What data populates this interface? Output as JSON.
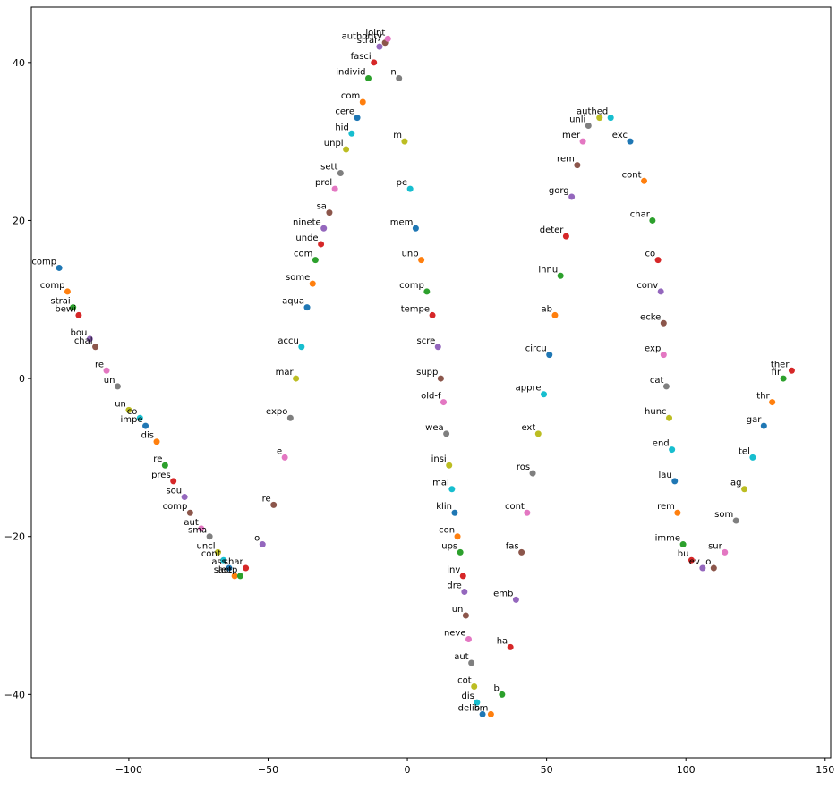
{
  "chart_data": {
    "type": "scatter",
    "title": "",
    "xlabel": "",
    "ylabel": "",
    "xlim": [
      -135,
      152
    ],
    "ylim": [
      -48,
      47
    ],
    "x_ticks": [
      -100,
      -50,
      0,
      50,
      100,
      150
    ],
    "y_ticks": [
      -40,
      -20,
      0,
      20,
      40
    ],
    "x_tick_labels": [
      "−100",
      "−50",
      "0",
      "50",
      "100",
      "150"
    ],
    "y_tick_labels": [
      "−40",
      "−20",
      "0",
      "20",
      "40"
    ],
    "grid": false,
    "legend": "none",
    "palette": [
      "#1f77b4",
      "#ff7f0e",
      "#2ca02c",
      "#d62728",
      "#9467bd",
      "#8c564b",
      "#e377c2",
      "#7f7f7f",
      "#bcbd22",
      "#17becf"
    ],
    "points": [
      {
        "x": -125,
        "y": 14,
        "label": "comp"
      },
      {
        "x": -122,
        "y": 11,
        "label": "comp"
      },
      {
        "x": -120,
        "y": 9,
        "label": "strai"
      },
      {
        "x": -118,
        "y": 8,
        "label": "bewi"
      },
      {
        "x": -114,
        "y": 5,
        "label": "bou"
      },
      {
        "x": -112,
        "y": 4,
        "label": "chal"
      },
      {
        "x": -108,
        "y": 1,
        "label": "re"
      },
      {
        "x": -104,
        "y": -1,
        "label": "un"
      },
      {
        "x": -100,
        "y": -4,
        "label": "un"
      },
      {
        "x": -96,
        "y": -5,
        "label": "co"
      },
      {
        "x": -94,
        "y": -6,
        "label": "impe"
      },
      {
        "x": -90,
        "y": -8,
        "label": "dis"
      },
      {
        "x": -87,
        "y": -11,
        "label": "re"
      },
      {
        "x": -84,
        "y": -13,
        "label": "pres"
      },
      {
        "x": -80,
        "y": -15,
        "label": "sou"
      },
      {
        "x": -78,
        "y": -17,
        "label": "comp"
      },
      {
        "x": -74,
        "y": -19,
        "label": "aut"
      },
      {
        "x": -71,
        "y": -20,
        "label": "sma"
      },
      {
        "x": -68,
        "y": -22,
        "label": "uncl"
      },
      {
        "x": -66,
        "y": -23,
        "label": "cont"
      },
      {
        "x": -64,
        "y": -24,
        "label": "ass"
      },
      {
        "x": -62,
        "y": -25,
        "label": "act"
      },
      {
        "x": -60,
        "y": -25,
        "label": "sleep"
      },
      {
        "x": -58,
        "y": -24,
        "label": "shar"
      },
      {
        "x": -52,
        "y": -21,
        "label": "o"
      },
      {
        "x": -48,
        "y": -16,
        "label": "re"
      },
      {
        "x": -44,
        "y": -10,
        "label": "e"
      },
      {
        "x": -42,
        "y": -5,
        "label": "expo"
      },
      {
        "x": -40,
        "y": 0,
        "label": "mar"
      },
      {
        "x": -38,
        "y": 4,
        "label": "accu"
      },
      {
        "x": -36,
        "y": 9,
        "label": "aqua"
      },
      {
        "x": -34,
        "y": 12,
        "label": "some"
      },
      {
        "x": -33,
        "y": 15,
        "label": "com"
      },
      {
        "x": -31,
        "y": 17,
        "label": "unde"
      },
      {
        "x": -30,
        "y": 19,
        "label": "ninete"
      },
      {
        "x": -28,
        "y": 21,
        "label": "sa"
      },
      {
        "x": -26,
        "y": 24,
        "label": "prol"
      },
      {
        "x": -24,
        "y": 26,
        "label": "sett"
      },
      {
        "x": -22,
        "y": 29,
        "label": "unpl"
      },
      {
        "x": -20,
        "y": 31,
        "label": "hid"
      },
      {
        "x": -18,
        "y": 33,
        "label": "cere"
      },
      {
        "x": -16,
        "y": 35,
        "label": "com"
      },
      {
        "x": -14,
        "y": 38,
        "label": "individ"
      },
      {
        "x": -12,
        "y": 40,
        "label": "fasci"
      },
      {
        "x": -10,
        "y": 42,
        "label": "strai"
      },
      {
        "x": -8,
        "y": 42.5,
        "label": "authority"
      },
      {
        "x": -7,
        "y": 43,
        "label": "joint"
      },
      {
        "x": -3,
        "y": 38,
        "label": "n"
      },
      {
        "x": -1,
        "y": 30,
        "label": "m"
      },
      {
        "x": 1,
        "y": 24,
        "label": "pe"
      },
      {
        "x": 3,
        "y": 19,
        "label": "mem"
      },
      {
        "x": 5,
        "y": 15,
        "label": "unp"
      },
      {
        "x": 7,
        "y": 11,
        "label": "comp"
      },
      {
        "x": 9,
        "y": 8,
        "label": "tempe"
      },
      {
        "x": 11,
        "y": 4,
        "label": "scre"
      },
      {
        "x": 12,
        "y": 0,
        "label": "supp"
      },
      {
        "x": 13,
        "y": -3,
        "label": "old-f"
      },
      {
        "x": 14,
        "y": -7,
        "label": "wea"
      },
      {
        "x": 15,
        "y": -11,
        "label": "insi"
      },
      {
        "x": 16,
        "y": -14,
        "label": "mal"
      },
      {
        "x": 17,
        "y": -17,
        "label": "klin"
      },
      {
        "x": 18,
        "y": -20,
        "label": "con"
      },
      {
        "x": 19,
        "y": -22,
        "label": "ups"
      },
      {
        "x": 20,
        "y": -25,
        "label": "inv"
      },
      {
        "x": 20.5,
        "y": -27,
        "label": "dre"
      },
      {
        "x": 21,
        "y": -30,
        "label": "un"
      },
      {
        "x": 22,
        "y": -33,
        "label": "neve"
      },
      {
        "x": 23,
        "y": -36,
        "label": "aut"
      },
      {
        "x": 24,
        "y": -39,
        "label": "cot"
      },
      {
        "x": 25,
        "y": -41,
        "label": "dis"
      },
      {
        "x": 27,
        "y": -42.5,
        "label": "delib"
      },
      {
        "x": 30,
        "y": -42.5,
        "label": "sm"
      },
      {
        "x": 34,
        "y": -40,
        "label": "b"
      },
      {
        "x": 37,
        "y": -34,
        "label": "ha"
      },
      {
        "x": 39,
        "y": -28,
        "label": "emb"
      },
      {
        "x": 41,
        "y": -22,
        "label": "fas"
      },
      {
        "x": 43,
        "y": -17,
        "label": "cont"
      },
      {
        "x": 45,
        "y": -12,
        "label": "ros"
      },
      {
        "x": 47,
        "y": -7,
        "label": "ext"
      },
      {
        "x": 49,
        "y": -2,
        "label": "appre"
      },
      {
        "x": 51,
        "y": 3,
        "label": "circu"
      },
      {
        "x": 53,
        "y": 8,
        "label": "ab"
      },
      {
        "x": 55,
        "y": 13,
        "label": "innu"
      },
      {
        "x": 57,
        "y": 18,
        "label": "deter"
      },
      {
        "x": 59,
        "y": 23,
        "label": "gorg"
      },
      {
        "x": 61,
        "y": 27,
        "label": "rem"
      },
      {
        "x": 63,
        "y": 30,
        "label": "mer"
      },
      {
        "x": 65,
        "y": 32,
        "label": "unli"
      },
      {
        "x": 69,
        "y": 33,
        "label": "auth"
      },
      {
        "x": 73,
        "y": 33,
        "label": "ed"
      },
      {
        "x": 80,
        "y": 30,
        "label": "exc"
      },
      {
        "x": 85,
        "y": 25,
        "label": "cont"
      },
      {
        "x": 88,
        "y": 20,
        "label": "char"
      },
      {
        "x": 90,
        "y": 15,
        "label": "co"
      },
      {
        "x": 91,
        "y": 11,
        "label": "conv"
      },
      {
        "x": 92,
        "y": 7,
        "label": "ecke"
      },
      {
        "x": 92,
        "y": 3,
        "label": "exp"
      },
      {
        "x": 93,
        "y": -1,
        "label": "cat"
      },
      {
        "x": 94,
        "y": -5,
        "label": "hunc"
      },
      {
        "x": 95,
        "y": -9,
        "label": "end"
      },
      {
        "x": 96,
        "y": -13,
        "label": "lau"
      },
      {
        "x": 97,
        "y": -17,
        "label": "rem"
      },
      {
        "x": 99,
        "y": -21,
        "label": "imme"
      },
      {
        "x": 102,
        "y": -23,
        "label": "bu"
      },
      {
        "x": 106,
        "y": -24,
        "label": "ev"
      },
      {
        "x": 110,
        "y": -24,
        "label": "o"
      },
      {
        "x": 114,
        "y": -22,
        "label": "sur"
      },
      {
        "x": 118,
        "y": -18,
        "label": "som"
      },
      {
        "x": 121,
        "y": -14,
        "label": "ag"
      },
      {
        "x": 124,
        "y": -10,
        "label": "tel"
      },
      {
        "x": 128,
        "y": -6,
        "label": "gar"
      },
      {
        "x": 131,
        "y": -3,
        "label": "thr"
      },
      {
        "x": 135,
        "y": 0,
        "label": "fir"
      },
      {
        "x": 138,
        "y": 1,
        "label": "ther"
      }
    ]
  }
}
